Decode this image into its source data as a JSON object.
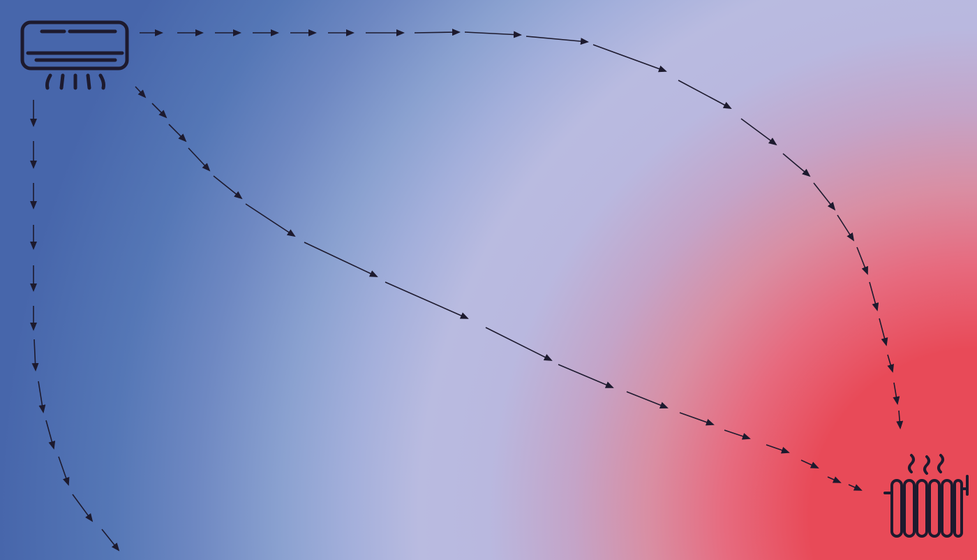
{
  "colors": {
    "cold": "#4766ab",
    "neutral": "#b9bbe0",
    "hot": "#e84a58",
    "ink": "#1d1a2e"
  },
  "icons": {
    "source": "air-conditioner-icon",
    "target": "radiator-icon"
  },
  "flows": [
    {
      "name": "top-flow"
    },
    {
      "name": "diagonal-flow"
    },
    {
      "name": "left-flow"
    }
  ]
}
